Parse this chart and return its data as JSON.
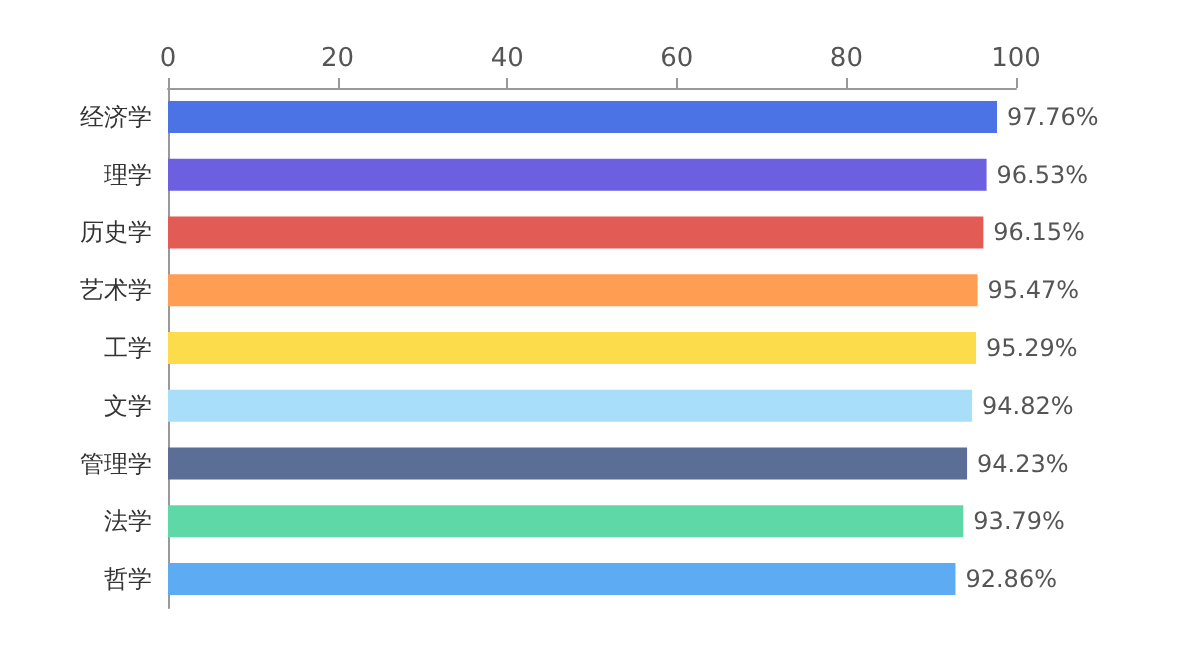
{
  "chart_data": {
    "type": "bar",
    "orientation": "horizontal",
    "categories": [
      "经济学",
      "理学",
      "历史学",
      "艺术学",
      "工学",
      "文学",
      "管理学",
      "法学",
      "哲学"
    ],
    "values": [
      97.76,
      96.53,
      96.15,
      95.47,
      95.29,
      94.82,
      94.23,
      93.79,
      92.86
    ],
    "colors": [
      "#4b73e5",
      "#6c5fe0",
      "#e25b55",
      "#ff9d52",
      "#fddc4c",
      "#a8def8",
      "#5b6e96",
      "#5fd8a8",
      "#5dabf2"
    ],
    "value_labels": [
      "97.76%",
      "96.53%",
      "96.15%",
      "95.47%",
      "95.29%",
      "94.82%",
      "94.23%",
      "93.79%",
      "92.86%"
    ],
    "xlim": [
      0,
      100
    ],
    "xticks": [
      0,
      20,
      40,
      60,
      80,
      100
    ],
    "grid": false
  }
}
